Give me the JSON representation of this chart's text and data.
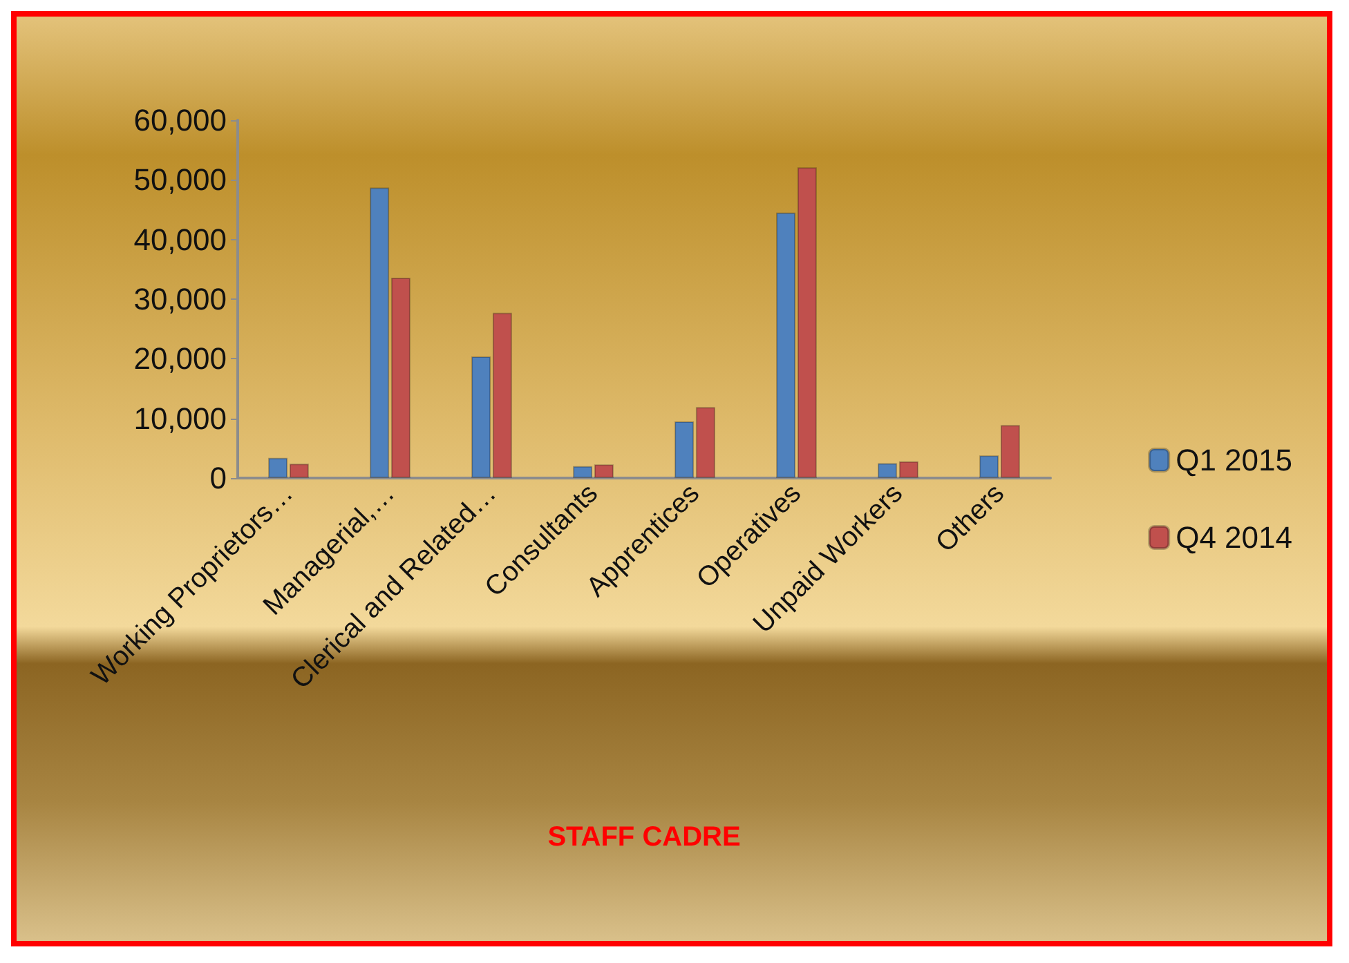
{
  "chart_data": {
    "type": "bar",
    "xlabel": "STAFF CADRE",
    "categories": [
      "Working Proprietors…",
      "Managerial,…",
      "Clerical and Related…",
      "Consultants",
      "Apprentices",
      "Operatives",
      "Unpaid Workers",
      "Others"
    ],
    "series": [
      {
        "name": "Q1 2015",
        "color": "#4f81bd",
        "values": [
          3400,
          48700,
          20400,
          2000,
          9500,
          44500,
          2500,
          3800
        ]
      },
      {
        "name": "Q4 2014",
        "color": "#c0504d",
        "values": [
          2400,
          33600,
          27700,
          2300,
          11900,
          52100,
          2800,
          8900
        ]
      }
    ],
    "ylim": [
      0,
      60000
    ],
    "yticks": [
      {
        "value": 0,
        "label": "0"
      },
      {
        "value": 10000,
        "label": "10,000"
      },
      {
        "value": 20000,
        "label": "20,000"
      },
      {
        "value": 30000,
        "label": "30,000"
      },
      {
        "value": 40000,
        "label": "40,000"
      },
      {
        "value": 50000,
        "label": "50,000"
      },
      {
        "value": 60000,
        "label": "60,000"
      }
    ],
    "grid": false,
    "legend": "right"
  }
}
